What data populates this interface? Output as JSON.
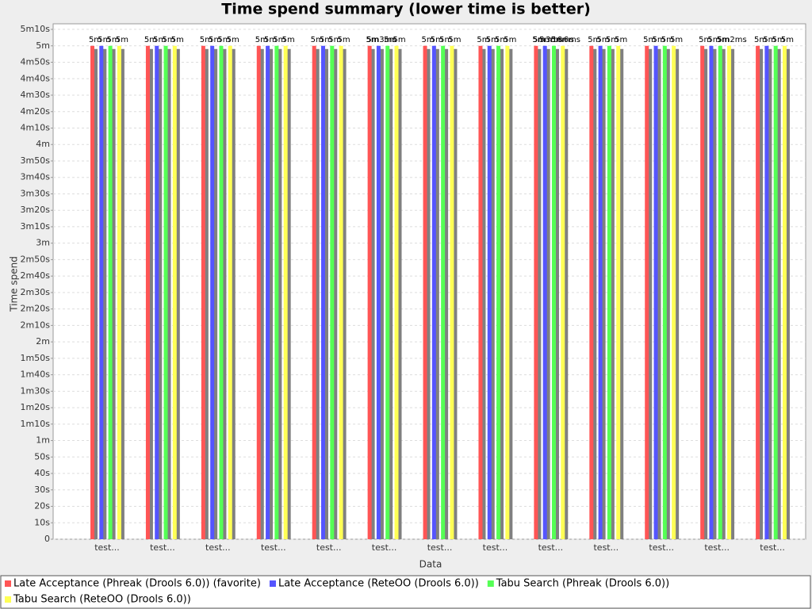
{
  "chart_data": {
    "type": "bar",
    "title": "Time spend summary (lower time is better)",
    "xlabel": "Data",
    "ylabel": "Time spend",
    "categories": [
      "test...",
      "test...",
      "test...",
      "test...",
      "test...",
      "test...",
      "test...",
      "test...",
      "test...",
      "test...",
      "test...",
      "test...",
      "test..."
    ],
    "series": [
      {
        "name": "Late Acceptance (Phreak (Drools 6.0)) (favorite)",
        "color": "#ff5555",
        "values": [
          300,
          300,
          300,
          300,
          300,
          300,
          300,
          300,
          300,
          300,
          300,
          300,
          300
        ],
        "value_labels": [
          "5m",
          "5m",
          "5m",
          "5m",
          "5m",
          "5m",
          "5m",
          "5m",
          "5m",
          "5m",
          "5m",
          "5m",
          "5m"
        ]
      },
      {
        "name": "Late Acceptance (ReteOO (Drools 6.0))",
        "color": "#5555ff",
        "values": [
          300,
          300,
          300,
          300,
          300,
          300.003,
          300,
          300,
          300.003,
          300,
          300,
          300,
          300
        ],
        "value_labels": [
          "5m",
          "5m",
          "5m",
          "5m",
          "5m",
          "5m3ms",
          "5m",
          "5m",
          "5m3ms",
          "5m",
          "5m",
          "5m",
          "5m"
        ]
      },
      {
        "name": "Tabu Search (Phreak (Drools 6.0))",
        "color": "#55ff55",
        "values": [
          300,
          300,
          300,
          300,
          300,
          300,
          300,
          300,
          300.016,
          300,
          300,
          300,
          300
        ],
        "value_labels": [
          "5m",
          "5m",
          "5m",
          "5m",
          "5m",
          "5m",
          "5m",
          "5m",
          "5m16ms",
          "5m",
          "5m",
          "5m",
          "5m"
        ]
      },
      {
        "name": "Tabu Search (ReteOO (Drools 6.0))",
        "color": "#ffff55",
        "values": [
          300,
          300,
          300,
          300,
          300,
          300,
          300,
          300,
          300.006,
          300,
          300,
          300.002,
          300
        ],
        "value_labels": [
          "5m",
          "5m",
          "5m",
          "5m",
          "5m",
          "5m",
          "5m",
          "5m",
          "5m6ms",
          "5m",
          "5m",
          "5m2ms",
          "5m"
        ]
      }
    ],
    "ylim": [
      0,
      313.4
    ],
    "yticks": [
      0,
      {
        "value": 10,
        "label": "10s"
      },
      {
        "value": 20,
        "label": "20s"
      },
      {
        "value": 30,
        "label": "30s"
      },
      {
        "value": 40,
        "label": "40s"
      },
      {
        "value": 50,
        "label": "50s"
      },
      {
        "value": 60,
        "label": "1m"
      },
      {
        "value": 70,
        "label": "1m10s"
      },
      {
        "value": 80,
        "label": "1m20s"
      },
      {
        "value": 90,
        "label": "1m30s"
      },
      {
        "value": 100,
        "label": "1m40s"
      },
      {
        "value": 110,
        "label": "1m50s"
      },
      {
        "value": 120,
        "label": "2m"
      },
      {
        "value": 130,
        "label": "2m10s"
      },
      {
        "value": 140,
        "label": "2m20s"
      },
      {
        "value": 150,
        "label": "2m30s"
      },
      {
        "value": 160,
        "label": "2m40s"
      },
      {
        "value": 170,
        "label": "2m50s"
      },
      {
        "value": 180,
        "label": "3m"
      },
      {
        "value": 190,
        "label": "3m10s"
      },
      {
        "value": 200,
        "label": "3m20s"
      },
      {
        "value": 210,
        "label": "3m30s"
      },
      {
        "value": 220,
        "label": "3m40s"
      },
      {
        "value": 230,
        "label": "3m50s"
      },
      {
        "value": 240,
        "label": "4m"
      },
      {
        "value": 250,
        "label": "4m10s"
      },
      {
        "value": 260,
        "label": "4m20s"
      },
      {
        "value": 270,
        "label": "4m30s"
      },
      {
        "value": 280,
        "label": "4m40s"
      },
      {
        "value": 290,
        "label": "4m50s"
      },
      {
        "value": 300,
        "label": "5m"
      },
      {
        "value": 310,
        "label": "5m10s"
      }
    ],
    "grid": true,
    "legend": "bottom"
  }
}
